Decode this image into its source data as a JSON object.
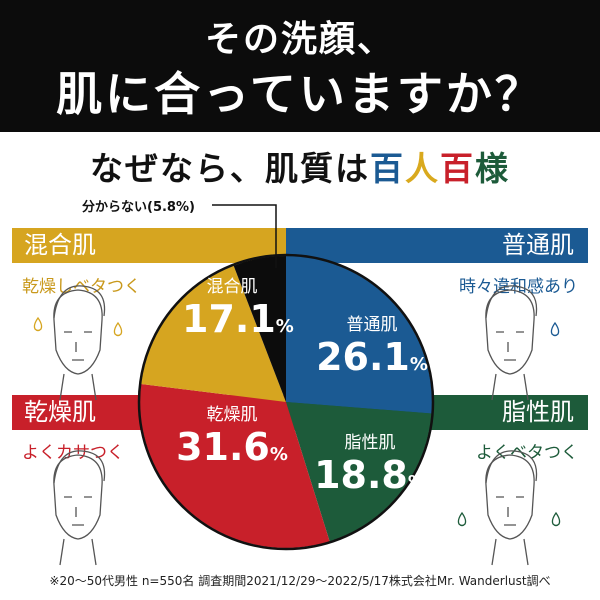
{
  "header": {
    "line1": "その洗顔、",
    "line2": "肌に合っていますか？"
  },
  "subtitle": {
    "prefix": "なぜなら、肌質は",
    "chars": [
      {
        "t": "百",
        "color": "#1b5a93"
      },
      {
        "t": "人",
        "color": "#d9a91e"
      },
      {
        "t": "百",
        "color": "#c8202a"
      },
      {
        "t": "様",
        "color": "#1d5b3a"
      }
    ]
  },
  "categories": {
    "combo": {
      "label": "混合肌",
      "desc": "乾燥しベタつく",
      "color": "#d6a520"
    },
    "normal": {
      "label": "普通肌",
      "desc": "時々違和感あり",
      "color": "#1b5a93"
    },
    "dry": {
      "label": "乾燥肌",
      "desc": "よくカサつく",
      "color": "#c8202a"
    },
    "oily": {
      "label": "脂性肌",
      "desc": "よくベタつく",
      "color": "#1d5b3a"
    }
  },
  "unknown_label": "分からない(5.8%)",
  "chart_data": {
    "type": "pie",
    "start": "top",
    "direction": "clockwise",
    "slices": [
      {
        "name": "普通肌",
        "value": 26.1,
        "label": "26.1",
        "color": "#1b5a93"
      },
      {
        "name": "脂性肌",
        "value": 18.8,
        "label": "18.8",
        "color": "#1d5b3a"
      },
      {
        "name": "乾燥肌",
        "value": 31.6,
        "label": "31.6",
        "color": "#c8202a"
      },
      {
        "name": "混合肌",
        "value": 17.1,
        "label": "17.1",
        "color": "#d6a520"
      },
      {
        "name": "分からない",
        "value": 5.8,
        "label": "5.8",
        "color": "#0c0c0c"
      }
    ],
    "unit": "%"
  },
  "footnote": "※20〜50代男性 n=550名 調査期間2021/12/29〜2022/5/17株式会社Mr. Wanderlust調べ"
}
